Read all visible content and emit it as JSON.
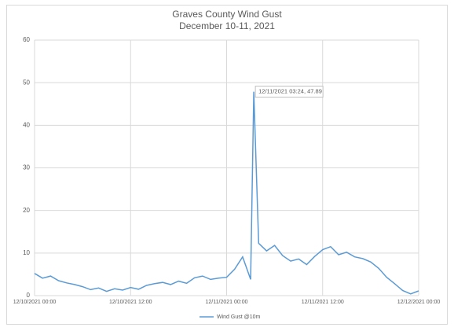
{
  "chart_data": {
    "type": "line",
    "title": "Graves County Wind Gust",
    "subtitle": "December 10-11, 2021",
    "annotation": "12/11/2021 03:24, 47.89",
    "x": [
      "12/10/2021 00:00",
      "12/10/2021 01:00",
      "12/10/2021 02:00",
      "12/10/2021 03:00",
      "12/10/2021 04:00",
      "12/10/2021 05:00",
      "12/10/2021 06:00",
      "12/10/2021 07:00",
      "12/10/2021 08:00",
      "12/10/2021 09:00",
      "12/10/2021 10:00",
      "12/10/2021 11:00",
      "12/10/2021 12:00",
      "12/10/2021 13:00",
      "12/10/2021 14:00",
      "12/10/2021 15:00",
      "12/10/2021 16:00",
      "12/10/2021 17:00",
      "12/10/2021 18:00",
      "12/10/2021 19:00",
      "12/10/2021 20:00",
      "12/10/2021 21:00",
      "12/10/2021 22:00",
      "12/10/2021 23:00",
      "12/11/2021 00:00",
      "12/11/2021 01:00",
      "12/11/2021 02:00",
      "12/11/2021 03:00",
      "12/11/2021 03:24",
      "12/11/2021 04:00",
      "12/11/2021 05:00",
      "12/11/2021 06:00",
      "12/11/2021 07:00",
      "12/11/2021 08:00",
      "12/11/2021 09:00",
      "12/11/2021 10:00",
      "12/11/2021 11:00",
      "12/11/2021 12:00",
      "12/11/2021 13:00",
      "12/11/2021 14:00",
      "12/11/2021 15:00",
      "12/11/2021 16:00",
      "12/11/2021 17:00",
      "12/11/2021 18:00",
      "12/11/2021 19:00",
      "12/11/2021 20:00",
      "12/11/2021 21:00",
      "12/11/2021 22:00",
      "12/11/2021 23:00",
      "12/12/2021 00:00"
    ],
    "series": [
      {
        "name": "Wind Gust @10m",
        "color": "#5b9bd5",
        "values": [
          5.2,
          4.1,
          4.6,
          3.5,
          3.0,
          2.6,
          2.1,
          1.4,
          1.8,
          1.0,
          1.6,
          1.3,
          1.9,
          1.5,
          2.4,
          2.8,
          3.1,
          2.6,
          3.4,
          2.9,
          4.2,
          4.6,
          3.8,
          4.1,
          4.3,
          6.2,
          9.1,
          3.8,
          47.89,
          12.3,
          10.5,
          11.8,
          9.4,
          8.1,
          8.6,
          7.3,
          9.2,
          10.8,
          11.5,
          9.6,
          10.2,
          9.1,
          8.7,
          7.9,
          6.4,
          4.3,
          2.8,
          1.2,
          0.4,
          1.1
        ]
      }
    ],
    "xlim": [
      "12/10/2021 00:00",
      "12/12/2021 00:00"
    ],
    "xticks": [
      "12/10/2021 00:00",
      "12/10/2021 12:00",
      "12/11/2021 00:00",
      "12/11/2021 12:00",
      "12/12/2021 00:00"
    ],
    "ylim": [
      0,
      60
    ],
    "yticks": [
      0,
      10,
      20,
      30,
      40,
      50,
      60
    ],
    "grid": true,
    "legend": "bottom"
  }
}
